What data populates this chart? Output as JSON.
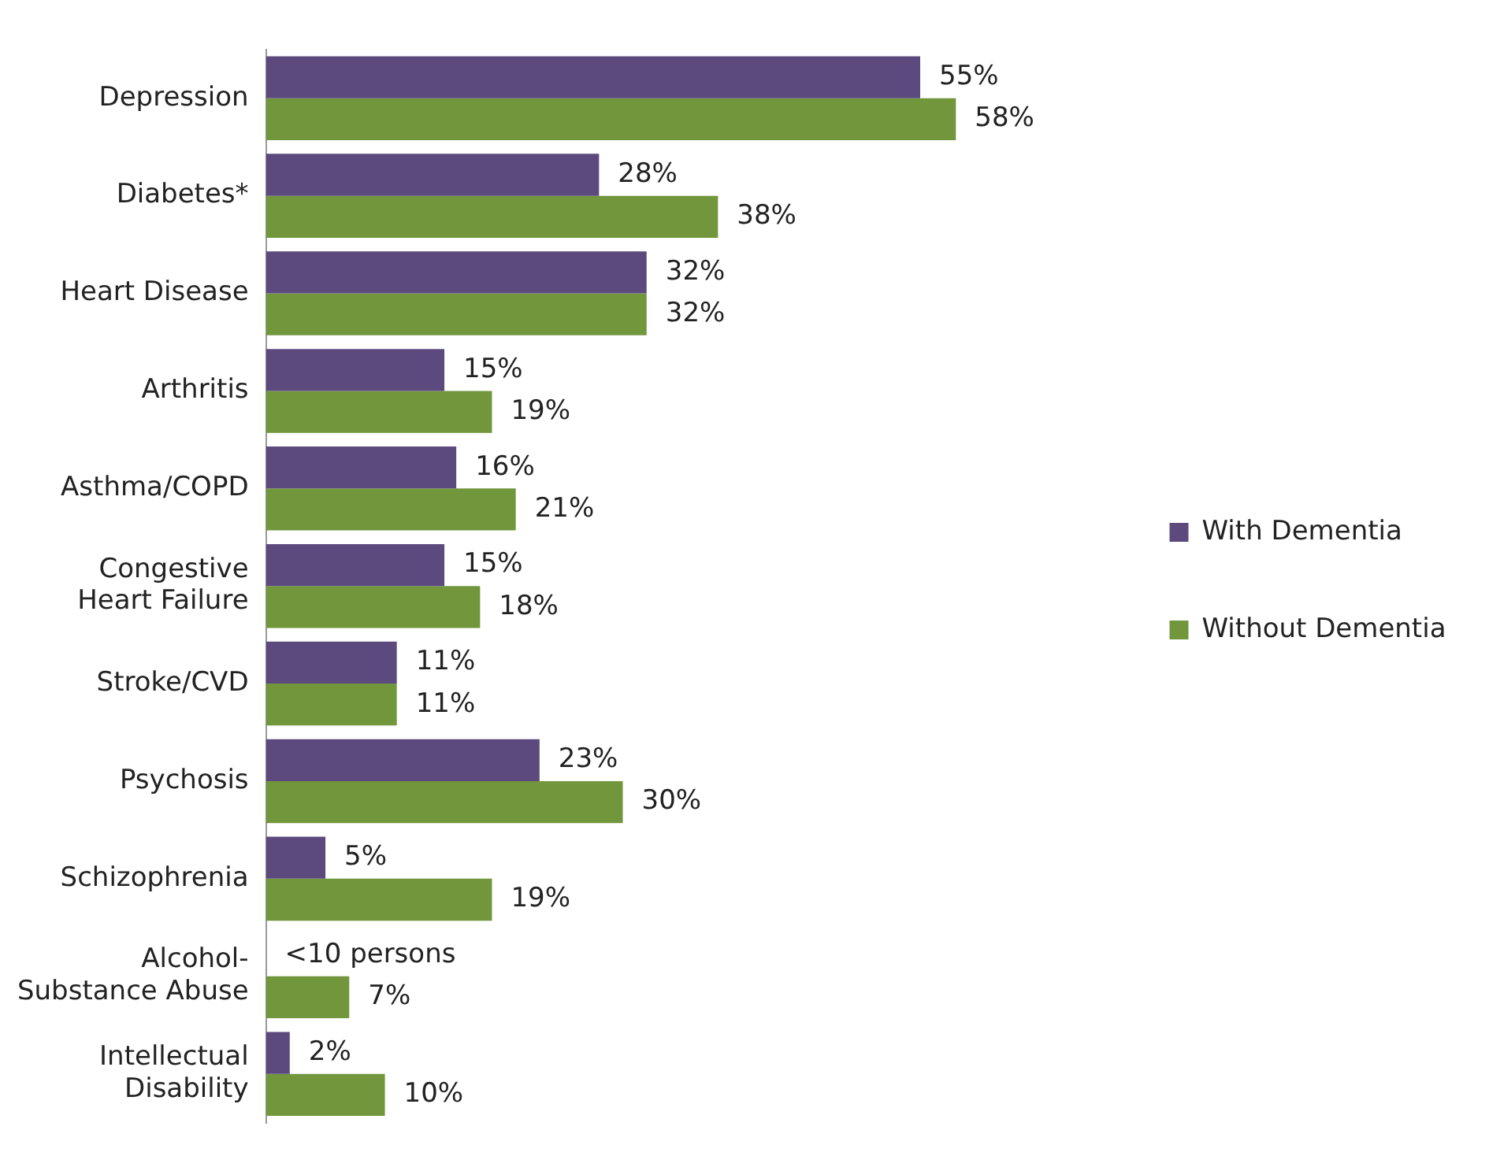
{
  "chart_data": {
    "type": "bar",
    "orientation": "horizontal",
    "legend": "right",
    "grid": false,
    "tick_labels": "y",
    "categories": [
      "Depression",
      "Diabetes*",
      "Heart Disease",
      "Arthritis",
      "Asthma/COPD",
      "Congestive Heart Failure",
      "Stroke/CVD",
      "Psychosis",
      "Schizophrenia",
      "Alcohol-Substance Abuse",
      "Intellectual Disability"
    ],
    "series": [
      {
        "name": "With Dementia",
        "color": "#5c4a7e",
        "values": [
          55,
          28,
          32,
          15,
          16,
          15,
          11,
          23,
          5,
          null,
          2
        ],
        "value_labels": [
          "55%",
          "28%",
          "32%",
          "15%",
          "16%",
          "15%",
          "11%",
          "23%",
          "5%",
          "<10 persons",
          "2%"
        ]
      },
      {
        "name": "Without Dementia",
        "color": "#71963c",
        "values": [
          58,
          38,
          32,
          19,
          21,
          18,
          11,
          30,
          19,
          7,
          10
        ],
        "value_labels": [
          "58%",
          "38%",
          "32%",
          "19%",
          "21%",
          "18%",
          "11%",
          "30%",
          "19%",
          "7%",
          "10%"
        ]
      }
    ]
  }
}
